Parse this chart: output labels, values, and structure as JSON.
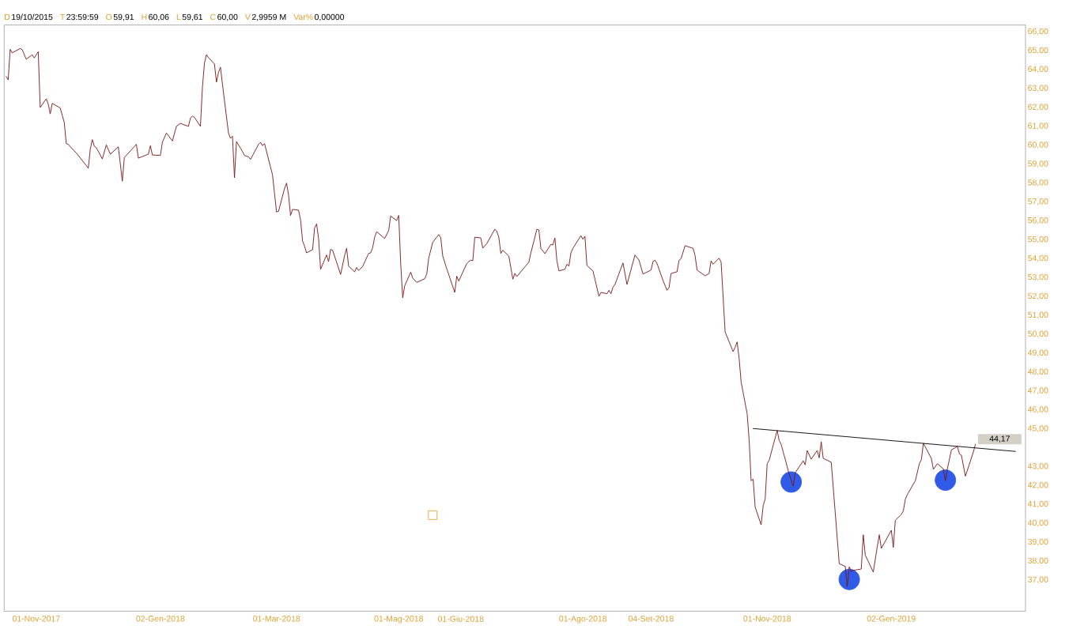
{
  "chart_data": {
    "type": "line",
    "annotations": [
      "D",
      "19/10/2015",
      "T",
      "23:59:59",
      "O",
      "59,91",
      "H",
      "60,06",
      "L",
      "59,61",
      "C",
      "60,00",
      "V",
      "2,9959 M",
      "Var%",
      "0,00000"
    ],
    "xlim": [
      "2017-10-16",
      "2019-03-10"
    ],
    "ylim": [
      35.35,
      66.35
    ],
    "xticks": [
      {
        "value": "2017-11-01",
        "label": "01-Nov-2017"
      },
      {
        "value": "2018-01-02",
        "label": "02-Gen-2018"
      },
      {
        "value": "2018-03-01",
        "label": "01-Mar-2018"
      },
      {
        "value": "2018-05-01",
        "label": "01-Mag-2018"
      },
      {
        "value": "2018-06-01",
        "label": "01-Giu-2018"
      },
      {
        "value": "2018-08-01",
        "label": "01-Ago-2018"
      },
      {
        "value": "2018-09-04",
        "label": "04-Set-2018"
      },
      {
        "value": "2018-11-01",
        "label": "01-Nov-2018"
      },
      {
        "value": "2019-01-02",
        "label": "02-Gen-2019"
      }
    ],
    "yticks": [
      {
        "value": 37,
        "label": "37,00"
      },
      {
        "value": 38,
        "label": "38,00"
      },
      {
        "value": 39,
        "label": "39,00"
      },
      {
        "value": 40,
        "label": "40,00"
      },
      {
        "value": 41,
        "label": "41,00"
      },
      {
        "value": 42,
        "label": "42,00"
      },
      {
        "value": 43,
        "label": "43,00"
      },
      {
        "value": 45,
        "label": "45,00"
      },
      {
        "value": 46,
        "label": "46,00"
      },
      {
        "value": 47,
        "label": "47,00"
      },
      {
        "value": 48,
        "label": "48,00"
      },
      {
        "value": 49,
        "label": "49,00"
      },
      {
        "value": 50,
        "label": "50,00"
      },
      {
        "value": 51,
        "label": "51,00"
      },
      {
        "value": 52,
        "label": "52,00"
      },
      {
        "value": 53,
        "label": "53,00"
      },
      {
        "value": 54,
        "label": "54,00"
      },
      {
        "value": 55,
        "label": "55,00"
      },
      {
        "value": 56,
        "label": "56,00"
      },
      {
        "value": 57,
        "label": "57,00"
      },
      {
        "value": 58,
        "label": "58,00"
      },
      {
        "value": 59,
        "label": "59,00"
      },
      {
        "value": 60,
        "label": "60,00"
      },
      {
        "value": 61,
        "label": "61,00"
      },
      {
        "value": 62,
        "label": "62,00"
      },
      {
        "value": 63,
        "label": "63,00"
      },
      {
        "value": 64,
        "label": "64,00"
      },
      {
        "value": 65,
        "label": "65,00"
      },
      {
        "value": 66,
        "label": "66,00"
      }
    ],
    "series": [
      {
        "type": "scatter",
        "marker": "circle",
        "color": "#2f5be8",
        "x": [
          "2018-11-13",
          "2018-12-12",
          "2019-01-29"
        ],
        "values": [
          42.18,
          37.03,
          42.28
        ]
      },
      {
        "type": "scatter",
        "marker": "square",
        "color": "#e8a33c",
        "x": [
          "2018-05-18"
        ],
        "values": [
          40.43
        ]
      },
      {
        "color": "#7a1414",
        "x": [
          "2017-10-17",
          "2017-10-18",
          "2017-10-19",
          "2017-10-20",
          "2017-10-24",
          "2017-10-25",
          "2017-10-27",
          "2017-10-30",
          "2017-10-31",
          "2017-11-02",
          "2017-11-03",
          "2017-11-06",
          "2017-11-07",
          "2017-11-08",
          "2017-11-09",
          "2017-11-13",
          "2017-11-15",
          "2017-11-16",
          "2017-11-17",
          "2017-11-20",
          "2017-11-21",
          "2017-11-27",
          "2017-11-28",
          "2017-11-29",
          "2017-11-30",
          "2017-12-01",
          "2017-12-04",
          "2017-12-06",
          "2017-12-08",
          "2017-12-12",
          "2017-12-14",
          "2017-12-15",
          "2017-12-21",
          "2017-12-22",
          "2017-12-27",
          "2017-12-28",
          "2017-12-29",
          "2018-01-02",
          "2018-01-03",
          "2018-01-05",
          "2018-01-08",
          "2018-01-10",
          "2018-01-12",
          "2018-01-16",
          "2018-01-17",
          "2018-01-18",
          "2018-01-19",
          "2018-01-22",
          "2018-01-23",
          "2018-01-24",
          "2018-01-25",
          "2018-01-26",
          "2018-01-29",
          "2018-01-30",
          "2018-01-31",
          "2018-02-01",
          "2018-02-02",
          "2018-02-05",
          "2018-02-06",
          "2018-02-07",
          "2018-02-08",
          "2018-02-09",
          "2018-02-12",
          "2018-02-13",
          "2018-02-15",
          "2018-02-16",
          "2018-02-20",
          "2018-02-21",
          "2018-02-22",
          "2018-02-23",
          "2018-02-27",
          "2018-03-01",
          "2018-03-02",
          "2018-03-05",
          "2018-03-06",
          "2018-03-07",
          "2018-03-08",
          "2018-03-09",
          "2018-03-12",
          "2018-03-13",
          "2018-03-14",
          "2018-03-15",
          "2018-03-16",
          "2018-03-19",
          "2018-03-20",
          "2018-03-21",
          "2018-03-22",
          "2018-03-23",
          "2018-03-26",
          "2018-03-27",
          "2018-03-28",
          "2018-03-29",
          "2018-04-02",
          "2018-04-04",
          "2018-04-05",
          "2018-04-06",
          "2018-04-09",
          "2018-04-10",
          "2018-04-11",
          "2018-04-13",
          "2018-04-16",
          "2018-04-17",
          "2018-04-18",
          "2018-04-19",
          "2018-04-20",
          "2018-04-24",
          "2018-04-26",
          "2018-04-27",
          "2018-04-30",
          "2018-05-01",
          "2018-05-02",
          "2018-05-03",
          "2018-05-04",
          "2018-05-07",
          "2018-05-08",
          "2018-05-10",
          "2018-05-14",
          "2018-05-15",
          "2018-05-16",
          "2018-05-18",
          "2018-05-21",
          "2018-05-22",
          "2018-05-23",
          "2018-05-25",
          "2018-05-29",
          "2018-05-30",
          "2018-05-31",
          "2018-06-04",
          "2018-06-05",
          "2018-06-06",
          "2018-06-07",
          "2018-06-08",
          "2018-06-11",
          "2018-06-12",
          "2018-06-14",
          "2018-06-18",
          "2018-06-19",
          "2018-06-20",
          "2018-06-21",
          "2018-06-22",
          "2018-06-25",
          "2018-06-27",
          "2018-06-28",
          "2018-06-29",
          "2018-07-05",
          "2018-07-06",
          "2018-07-09",
          "2018-07-10",
          "2018-07-11",
          "2018-07-13",
          "2018-07-16",
          "2018-07-17",
          "2018-07-18",
          "2018-07-19",
          "2018-07-20",
          "2018-07-23",
          "2018-07-24",
          "2018-07-25",
          "2018-07-26",
          "2018-07-27",
          "2018-07-31",
          "2018-08-01",
          "2018-08-02",
          "2018-08-03",
          "2018-08-06",
          "2018-08-09",
          "2018-08-10",
          "2018-08-13",
          "2018-08-14",
          "2018-08-15",
          "2018-08-16",
          "2018-08-17",
          "2018-08-21",
          "2018-08-23",
          "2018-08-27",
          "2018-08-29",
          "2018-08-31",
          "2018-09-04",
          "2018-09-05",
          "2018-09-06",
          "2018-09-07",
          "2018-09-10",
          "2018-09-12",
          "2018-09-13",
          "2018-09-14",
          "2018-09-17",
          "2018-09-18",
          "2018-09-19",
          "2018-09-21",
          "2018-09-25",
          "2018-09-26",
          "2018-09-27",
          "2018-10-01",
          "2018-10-03",
          "2018-10-04",
          "2018-10-05",
          "2018-10-08",
          "2018-10-09",
          "2018-10-10",
          "2018-10-11",
          "2018-10-15",
          "2018-10-16",
          "2018-10-17",
          "2018-10-18",
          "2018-10-19",
          "2018-10-22",
          "2018-10-23",
          "2018-10-24",
          "2018-10-25",
          "2018-10-26",
          "2018-10-29",
          "2018-10-30",
          "2018-10-31",
          "2018-11-01",
          "2018-11-02",
          "2018-11-06",
          "2018-11-07",
          "2018-11-08",
          "2018-11-09",
          "2018-11-12",
          "2018-11-14",
          "2018-11-15",
          "2018-11-19",
          "2018-11-20",
          "2018-11-21",
          "2018-11-23",
          "2018-11-26",
          "2018-11-27",
          "2018-11-28",
          "2018-11-29",
          "2018-12-03",
          "2018-12-07",
          "2018-12-10",
          "2018-12-11",
          "2018-12-12",
          "2018-12-13",
          "2018-12-14",
          "2018-12-18",
          "2018-12-19",
          "2018-12-20",
          "2018-12-24",
          "2018-12-26",
          "2018-12-27",
          "2018-12-28",
          "2019-01-02",
          "2019-01-03",
          "2019-01-04",
          "2019-01-07",
          "2019-01-08",
          "2019-01-09",
          "2019-01-10",
          "2019-01-14",
          "2019-01-16",
          "2019-01-17",
          "2019-01-18",
          "2019-01-22",
          "2019-01-23",
          "2019-01-25",
          "2019-01-28",
          "2019-01-29",
          "2019-01-30",
          "2019-02-01",
          "2019-02-04",
          "2019-02-05",
          "2019-02-06",
          "2019-02-08",
          "2019-02-12",
          "2019-02-13"
        ],
        "values": [
          63.63,
          63.45,
          65.07,
          64.88,
          65.11,
          65.05,
          64.54,
          64.78,
          64.61,
          64.94,
          61.99,
          62.45,
          62.17,
          61.65,
          62.21,
          61.96,
          61.19,
          60.08,
          60.04,
          59.69,
          59.59,
          58.78,
          59.8,
          60.29,
          59.94,
          59.87,
          59.27,
          60.01,
          59.52,
          59.91,
          58.09,
          59.34,
          60.04,
          59.31,
          59.52,
          59.97,
          59.48,
          59.45,
          60.15,
          60.64,
          60.22,
          60.99,
          61.15,
          60.99,
          61.43,
          61.53,
          61.47,
          60.99,
          63.07,
          64.33,
          64.78,
          64.63,
          64.29,
          63.33,
          63.84,
          64.12,
          63.21,
          60.64,
          60.36,
          60.47,
          58.27,
          60.19,
          59.66,
          59.45,
          59.38,
          59.24,
          60.04,
          60.15,
          59.97,
          60.08,
          58.42,
          56.46,
          56.5,
          57.71,
          57.99,
          57.36,
          56.28,
          56.6,
          56.56,
          56.04,
          54.93,
          54.65,
          54.3,
          54.47,
          55.62,
          55.83,
          55.06,
          53.43,
          54.19,
          53.84,
          54.48,
          54.44,
          53.16,
          54.16,
          54.54,
          53.6,
          53.3,
          53.53,
          53.37,
          53.58,
          54.27,
          54.3,
          54.58,
          55.13,
          55.42,
          55.06,
          55.48,
          56.25,
          56.01,
          56.28,
          53.74,
          51.93,
          52.56,
          53.28,
          52.97,
          52.74,
          52.93,
          53.18,
          54.02,
          54.86,
          55.27,
          55.11,
          54.13,
          53.46,
          52.21,
          53.07,
          52.81,
          53.74,
          53.84,
          53.92,
          53.88,
          55.13,
          55.09,
          54.55,
          54.79,
          55.55,
          55.44,
          55.13,
          54.27,
          54.44,
          54.13,
          52.91,
          53.21,
          53.05,
          53.81,
          54.3,
          55.55,
          55.51,
          54.54,
          54.26,
          54.75,
          54.72,
          55.09,
          53.88,
          53.35,
          53.43,
          53.7,
          53.6,
          54.3,
          54.54,
          55.21,
          55.02,
          55.18,
          53.63,
          53.35,
          52.0,
          52.21,
          52.14,
          52.32,
          52.14,
          52.49,
          52.63,
          53.77,
          52.63,
          54.19,
          53.92,
          53.18,
          53.39,
          53.85,
          53.91,
          53.74,
          52.84,
          52.32,
          52.46,
          53.21,
          53.3,
          53.91,
          53.99,
          54.68,
          54.54,
          54.16,
          53.39,
          53.09,
          53.21,
          53.88,
          53.7,
          54.02,
          53.81,
          52.0,
          50.12,
          49.08,
          49.31,
          49.59,
          48.73,
          47.47,
          45.8,
          44.41,
          42.25,
          42.33,
          40.86,
          39.92,
          40.93,
          41.28,
          43.15,
          43.33,
          44.91,
          44.37,
          44.17,
          43.78,
          42.6,
          41.97,
          42.67,
          43.3,
          43.09,
          43.85,
          43.39,
          43.85,
          43.46,
          44.31,
          43.43,
          43.23,
          37.86,
          37.72,
          36.64,
          37.7,
          37.45,
          37.51,
          37.58,
          39.39,
          38.31,
          37.42,
          38.77,
          39.39,
          38.67,
          39.63,
          38.72,
          40.16,
          40.47,
          40.65,
          41.27,
          41.52,
          42.25,
          43.15,
          43.36,
          44.23,
          43.43,
          42.85,
          43.15,
          42.88,
          42.25,
          42.88,
          43.88,
          44.06,
          43.67,
          43.6,
          42.49,
          43.78,
          44.17
        ],
        "value_labels": [
          null,
          null,
          null,
          null,
          null,
          null,
          null,
          null,
          null,
          null,
          null,
          null,
          null,
          null,
          null,
          null,
          null,
          null,
          null,
          null,
          null,
          null,
          null,
          null,
          null,
          null,
          null,
          null,
          null,
          null,
          null,
          null,
          null,
          null,
          null,
          null,
          null,
          null,
          null,
          null,
          null,
          null,
          null,
          null,
          null,
          null,
          null,
          null,
          null,
          null,
          null,
          null,
          null,
          null,
          null,
          null,
          null,
          null,
          null,
          null,
          null,
          null,
          null,
          null,
          null,
          null,
          null,
          null,
          null,
          null,
          null,
          null,
          null,
          null,
          null,
          null,
          null,
          null,
          null,
          null,
          null,
          null,
          null,
          null,
          null,
          null,
          null,
          null,
          null,
          null,
          null,
          null,
          null,
          null,
          null,
          null,
          null,
          null,
          null,
          null,
          null,
          null,
          null,
          null,
          null,
          null,
          null,
          null,
          null,
          null,
          null,
          null,
          null,
          null,
          null,
          null,
          null,
          null,
          null,
          null,
          null,
          null,
          null,
          null,
          null,
          null,
          null,
          null,
          null,
          null,
          null,
          null,
          null,
          null,
          null,
          null,
          null,
          null,
          null,
          null,
          null,
          null,
          null,
          null,
          null,
          null,
          null,
          null,
          null,
          null,
          null,
          null,
          null,
          null,
          null,
          null,
          null,
          null,
          null,
          null,
          null,
          null,
          null,
          null,
          null,
          null,
          null,
          null,
          null,
          null,
          null,
          null,
          null,
          null,
          null,
          null,
          null,
          null,
          null,
          null,
          null,
          null,
          null,
          null,
          null,
          null,
          null,
          null,
          null,
          null,
          null,
          null,
          null,
          null,
          null,
          null,
          null,
          null,
          null,
          null,
          null,
          null,
          null,
          null,
          null,
          null,
          null,
          null,
          null,
          null,
          null,
          null,
          null,
          null,
          null,
          null,
          null,
          null,
          null,
          null,
          null,
          null,
          null,
          null,
          null,
          null,
          null,
          null,
          null,
          null,
          null,
          null,
          null,
          null,
          null,
          null,
          null,
          null,
          null,
          null,
          null,
          null,
          null,
          null,
          null,
          null,
          null,
          null,
          null,
          null,
          null,
          null,
          null,
          null,
          null,
          null,
          null,
          null,
          null,
          null,
          null,
          null,
          null,
          null,
          null,
          null,
          null,
          "44,17"
        ]
      },
      {
        "color": "#000000",
        "x": [
          "2018-10-25",
          "2019-03-05"
        ],
        "values": [
          45.01,
          43.8
        ]
      }
    ]
  }
}
